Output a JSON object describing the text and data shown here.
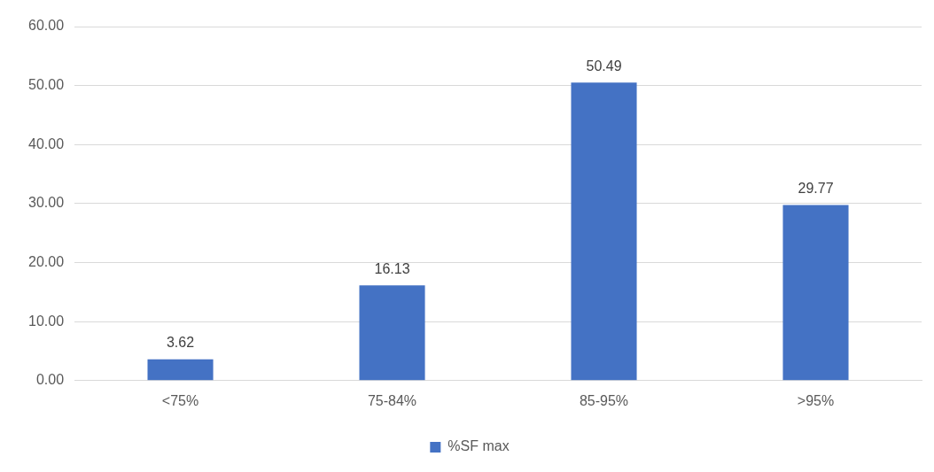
{
  "chart_data": {
    "type": "bar",
    "categories": [
      "<75%",
      "75-84%",
      "85-95%",
      ">95%"
    ],
    "series": [
      {
        "name": "%SF max",
        "color": "#4472c4",
        "values": [
          3.62,
          16.13,
          50.49,
          29.77
        ]
      }
    ],
    "ylim": [
      0,
      60
    ],
    "yticks": [
      {
        "value": 0,
        "label": "0.00"
      },
      {
        "value": 10,
        "label": "10.00"
      },
      {
        "value": 20,
        "label": "20.00"
      },
      {
        "value": 30,
        "label": "30.00"
      },
      {
        "value": 40,
        "label": "40.00"
      },
      {
        "value": 50,
        "label": "50.00"
      },
      {
        "value": 60,
        "label": "60.00"
      }
    ],
    "grid": "y",
    "legend": "bottom",
    "data_labels": true
  }
}
